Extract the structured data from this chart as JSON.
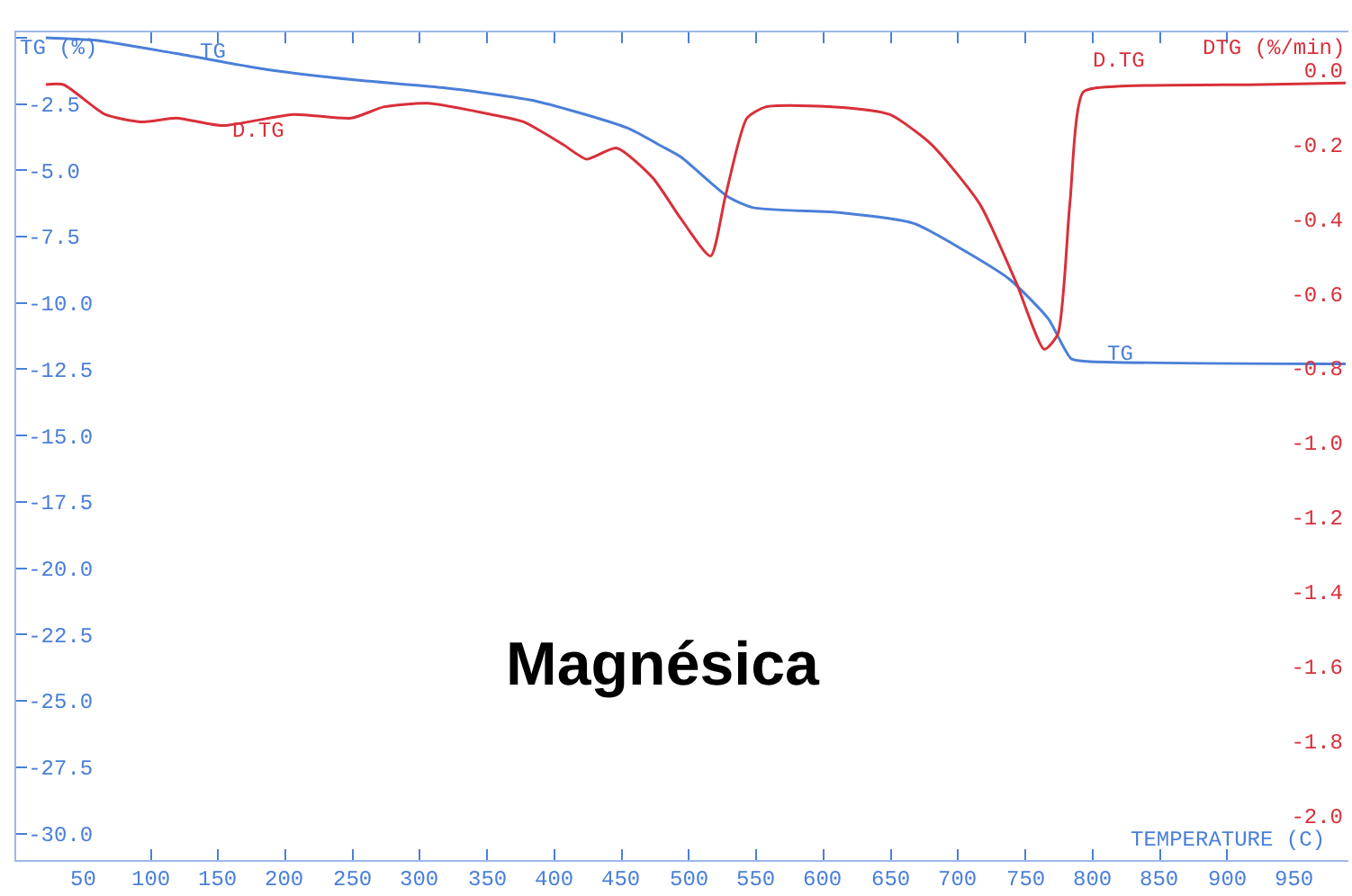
{
  "chart_data": {
    "type": "line",
    "title": "Magnésica",
    "xlabel": "TEMPERATURE (C)",
    "ylabel": "TG (%)",
    "y2label": "DTG (%/min)",
    "xlim": [
      0,
      990
    ],
    "xticks": [
      50,
      100,
      150,
      200,
      250,
      300,
      350,
      400,
      450,
      500,
      550,
      600,
      650,
      700,
      750,
      800,
      850,
      900,
      950
    ],
    "ylim": [
      -31,
      0.2
    ],
    "yticks": [
      {
        "value": 0,
        "label": null
      },
      {
        "value": -2.5,
        "label": "-2.5"
      },
      {
        "value": -5,
        "label": "-5.0"
      },
      {
        "value": -7.5,
        "label": "-7.5"
      },
      {
        "value": -10,
        "label": "-10.0"
      },
      {
        "value": -12.5,
        "label": "-12.5"
      },
      {
        "value": -15,
        "label": "-15.0"
      },
      {
        "value": -17.5,
        "label": "-17.5"
      },
      {
        "value": -20,
        "label": "-20.0"
      },
      {
        "value": -22.5,
        "label": "-22.5"
      },
      {
        "value": -25,
        "label": "-25.0"
      },
      {
        "value": -27.5,
        "label": "-27.5"
      },
      {
        "value": -30,
        "label": "-30.0"
      }
    ],
    "y2lim": [
      -2.12,
      0.1
    ],
    "y2ticks": [
      {
        "value": 0,
        "label": "0.0"
      },
      {
        "value": -0.2,
        "label": "-0.2"
      },
      {
        "value": -0.4,
        "label": "-0.4"
      },
      {
        "value": -0.6,
        "label": "-0.6"
      },
      {
        "value": -0.8,
        "label": "-0.8"
      },
      {
        "value": -1.0,
        "label": "-1.0"
      },
      {
        "value": -1.2,
        "label": "-1.2"
      },
      {
        "value": -1.4,
        "label": "-1.4"
      },
      {
        "value": -1.6,
        "label": "-1.6"
      },
      {
        "value": -1.8,
        "label": "-1.8"
      },
      {
        "value": -2.0,
        "label": "-2.0"
      }
    ],
    "marker": "none",
    "line_style": "solid",
    "series": [
      {
        "color": "#4a7fd8",
        "x": [
          22,
          59,
          119,
          186,
          253,
          320,
          387,
          454,
          480,
          494,
          529,
          547,
          613,
          667,
          707,
          738,
          767,
          784,
          796,
          988
        ],
        "values": [
          0,
          -0.1,
          -0.6,
          -1.2,
          -1.6,
          -1.9,
          -2.4,
          -3.4,
          -4.1,
          -4.5,
          -6.0,
          -6.4,
          -6.6,
          -7.0,
          -8.1,
          -9.1,
          -10.6,
          -12.1,
          -12.2,
          -12.3
        ]
      },
      {
        "color": "#d8303a",
        "axis": "y2",
        "x": [
          22,
          35,
          66,
          93,
          119,
          153,
          206,
          249,
          273,
          306,
          353,
          377,
          406,
          424,
          446,
          473,
          494,
          516,
          527,
          543,
          557,
          609,
          649,
          680,
          716,
          743,
          764,
          774,
          783,
          793,
          818,
          925,
          988
        ],
        "values": [
          -0.04,
          -0.04,
          -0.12,
          -0.14,
          -0.13,
          -0.15,
          -0.12,
          -0.13,
          -0.1,
          -0.09,
          -0.12,
          -0.14,
          -0.2,
          -0.24,
          -0.21,
          -0.29,
          -0.4,
          -0.5,
          -0.34,
          -0.13,
          -0.1,
          -0.1,
          -0.12,
          -0.2,
          -0.36,
          -0.57,
          -0.75,
          -0.71,
          -0.36,
          -0.06,
          -0.045,
          -0.04,
          -0.036
        ]
      }
    ],
    "annotations": [
      "TG",
      "D.TG",
      "TG",
      "D.TG"
    ]
  }
}
